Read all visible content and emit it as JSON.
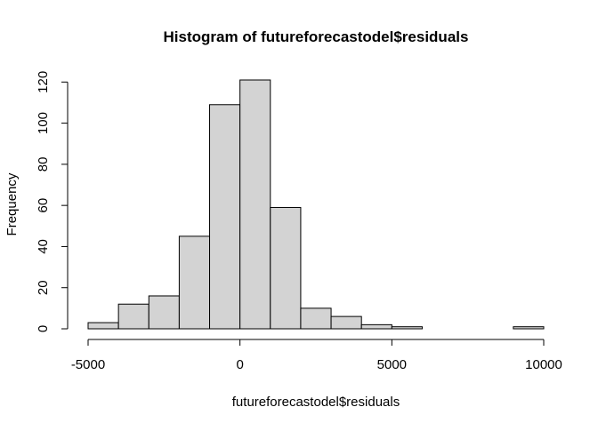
{
  "chart_data": {
    "type": "bar",
    "title": "Histogram of futureforecastodel$residuals",
    "xlabel": "futureforecastodel$residuals",
    "ylabel": "Frequency",
    "bins": [
      {
        "start": -5000,
        "end": -4000,
        "count": 3
      },
      {
        "start": -4000,
        "end": -3000,
        "count": 12
      },
      {
        "start": -3000,
        "end": -2000,
        "count": 16
      },
      {
        "start": -2000,
        "end": -1000,
        "count": 45
      },
      {
        "start": -1000,
        "end": 0,
        "count": 109
      },
      {
        "start": 0,
        "end": 1000,
        "count": 121
      },
      {
        "start": 1000,
        "end": 2000,
        "count": 59
      },
      {
        "start": 2000,
        "end": 3000,
        "count": 10
      },
      {
        "start": 3000,
        "end": 4000,
        "count": 6
      },
      {
        "start": 4000,
        "end": 5000,
        "count": 2
      },
      {
        "start": 5000,
        "end": 6000,
        "count": 1
      },
      {
        "start": 6000,
        "end": 7000,
        "count": 0
      },
      {
        "start": 7000,
        "end": 8000,
        "count": 0
      },
      {
        "start": 8000,
        "end": 9000,
        "count": 0
      },
      {
        "start": 9000,
        "end": 10000,
        "count": 1
      }
    ],
    "xlim": [
      -5000,
      10000
    ],
    "ylim": [
      0,
      121
    ],
    "x_ticks": [
      -5000,
      0,
      5000,
      10000
    ],
    "x_tick_labels": [
      "-5000",
      "0",
      "5000",
      "10000"
    ],
    "y_ticks": [
      0,
      20,
      40,
      60,
      80,
      100,
      120
    ],
    "y_tick_labels": [
      "0",
      "20",
      "40",
      "60",
      "80",
      "100",
      "120"
    ],
    "grid": false,
    "bar_fill": "#d3d3d3",
    "bar_stroke": "#000000"
  }
}
